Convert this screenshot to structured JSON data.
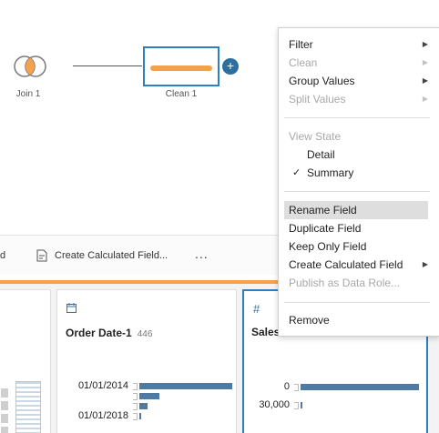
{
  "flow": {
    "join_label": "Join 1",
    "clean_label": "Clean 1",
    "add_symbol": "+",
    "colors": {
      "join_accent": "#f5a04a",
      "clean_bar": "#f5a04a",
      "selection": "#2d7fc1",
      "add_button": "#2c6f9e"
    }
  },
  "toolbar": {
    "cut_text": "d",
    "create_calc_label": "Create Calculated Field...",
    "more_label": "..."
  },
  "profile": {
    "order_date": {
      "type_icon": "calendar-icon",
      "title": "Order Date-1",
      "count": "446",
      "bins": [
        {
          "label": "01/01/2014",
          "value": 1.0
        },
        {
          "label": "",
          "value": 0.22
        },
        {
          "label": "",
          "value": 0.09
        },
        {
          "label": "01/01/2018",
          "value": 0.02
        }
      ]
    },
    "sales": {
      "type_icon": "hash-icon",
      "title": "Sales",
      "count": "",
      "bins": [
        {
          "label": "0",
          "value": 1.0
        },
        {
          "label": "30,000",
          "value": 0.0
        }
      ]
    },
    "colors": {
      "bar": "#4f7ba3",
      "rule": "#f5a04a"
    }
  },
  "menu": {
    "items": [
      {
        "label": "Filter",
        "submenu": true,
        "disabled": false
      },
      {
        "label": "Clean",
        "submenu": true,
        "disabled": true
      },
      {
        "label": "Group Values",
        "submenu": true,
        "disabled": false
      },
      {
        "label": "Split Values",
        "submenu": true,
        "disabled": true
      },
      {
        "label": "View State",
        "disabled": true
      },
      {
        "label": "Detail",
        "disabled": false
      },
      {
        "label": "Summary",
        "checked": true,
        "disabled": false
      },
      {
        "label": "Rename Field",
        "highlighted": true,
        "disabled": false
      },
      {
        "label": "Duplicate Field",
        "disabled": false
      },
      {
        "label": "Keep Only Field",
        "disabled": false
      },
      {
        "label": "Create Calculated Field",
        "submenu": true,
        "disabled": false
      },
      {
        "label": "Publish as Data Role...",
        "disabled": true
      },
      {
        "label": "Remove",
        "disabled": false
      }
    ],
    "arrow_glyph": "▶",
    "check_glyph": "✓"
  }
}
